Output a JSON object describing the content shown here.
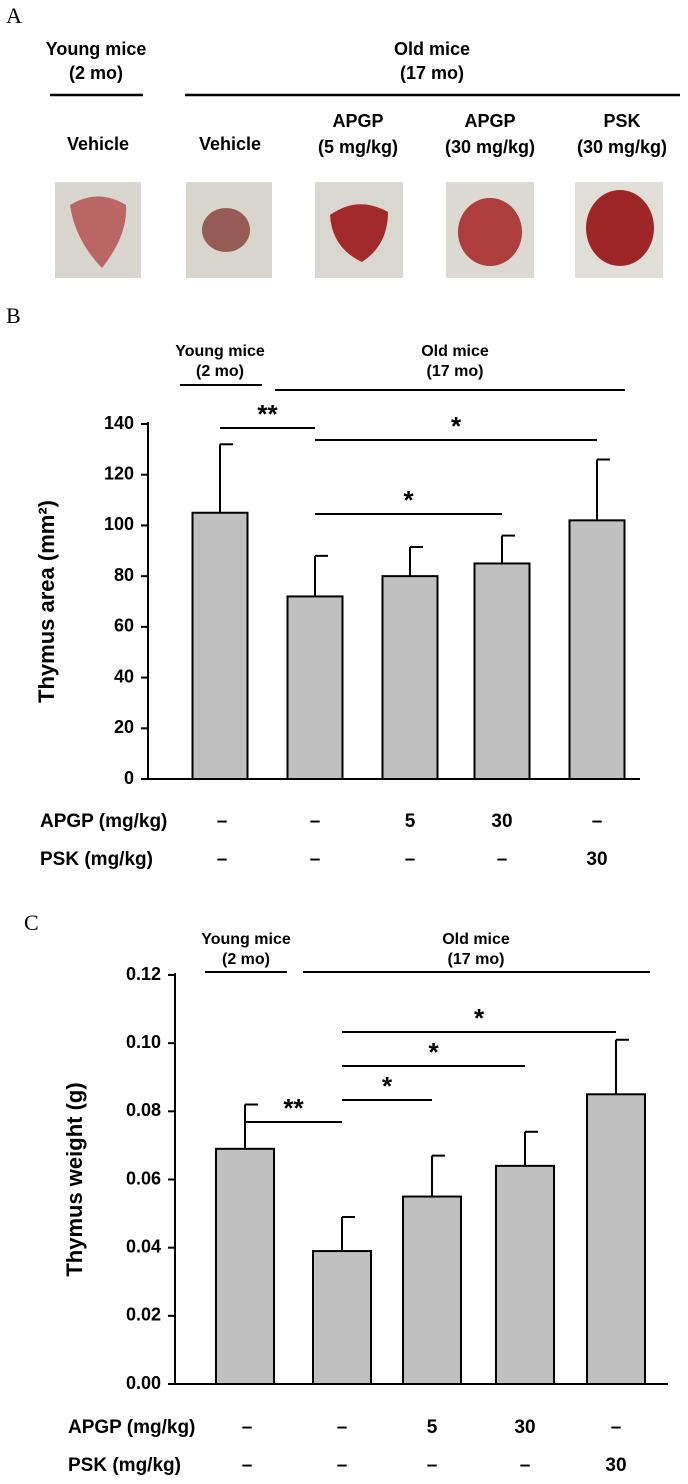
{
  "panel_a": {
    "label": "A",
    "groups": [
      {
        "name": "Young mice",
        "detail": "(2 mo)"
      },
      {
        "name": "Old mice",
        "detail": "(17 mo)"
      }
    ],
    "columns": [
      {
        "lines": [
          "Vehicle"
        ]
      },
      {
        "lines": [
          "Vehicle"
        ]
      },
      {
        "lines": [
          "APGP",
          "(5 mg/kg)"
        ]
      },
      {
        "lines": [
          "APGP",
          "(30 mg/kg)"
        ]
      },
      {
        "lines": [
          "PSK",
          "(30 mg/kg)"
        ]
      }
    ]
  },
  "chart_data": [
    {
      "type": "bar",
      "panel_label": "B",
      "groups": [
        {
          "name": "Young mice",
          "detail": "(2 mo)"
        },
        {
          "name": "Old mice",
          "detail": "(17 mo)"
        }
      ],
      "y_label": "Thymus area (mm²)",
      "values": [
        105,
        72,
        80,
        85,
        102
      ],
      "errors": [
        27,
        16,
        11.5,
        11,
        24
      ],
      "color": "#c0c0c0",
      "ylim": [
        0,
        140
      ],
      "yticks": [
        0,
        20,
        40,
        60,
        80,
        100,
        120,
        140
      ],
      "significance": [
        {
          "label": "**",
          "from": 0,
          "to": 1
        },
        {
          "label": "*",
          "from": 1,
          "to": 3
        },
        {
          "label": "*",
          "from": 1,
          "to": 4
        }
      ],
      "treatments": [
        {
          "name": "APGP (mg/kg)",
          "values": [
            "–",
            "–",
            "5",
            "30",
            "–"
          ]
        },
        {
          "name": "PSK (mg/kg)",
          "values": [
            "–",
            "–",
            "–",
            "–",
            "30"
          ]
        }
      ]
    },
    {
      "type": "bar",
      "panel_label": "C",
      "groups": [
        {
          "name": "Young mice",
          "detail": "(2 mo)"
        },
        {
          "name": "Old mice",
          "detail": "(17 mo)"
        }
      ],
      "y_label": "Thymus weight (g)",
      "values": [
        0.069,
        0.039,
        0.055,
        0.064,
        0.085
      ],
      "errors": [
        0.013,
        0.01,
        0.012,
        0.01,
        0.016
      ],
      "color": "#c0c0c0",
      "ylim": [
        0,
        0.12
      ],
      "yticks": [
        {
          "value": 0,
          "label": "0.00"
        },
        {
          "value": 0.02,
          "label": "0.02"
        },
        {
          "value": 0.04,
          "label": "0.04"
        },
        {
          "value": 0.06,
          "label": "0.06"
        },
        {
          "value": 0.08,
          "label": "0.08"
        },
        {
          "value": 0.1,
          "label": "0.10"
        },
        {
          "value": 0.12,
          "label": "0.12"
        }
      ],
      "significance": [
        {
          "label": "**",
          "from": 0,
          "to": 1
        },
        {
          "label": "*",
          "from": 1,
          "to": 2
        },
        {
          "label": "*",
          "from": 1,
          "to": 3
        },
        {
          "label": "*",
          "from": 1,
          "to": 4
        }
      ],
      "treatments": [
        {
          "name": "APGP (mg/kg)",
          "values": [
            "–",
            "–",
            "5",
            "30",
            "–"
          ]
        },
        {
          "name": "PSK (mg/kg)",
          "values": [
            "–",
            "–",
            "–",
            "–",
            "30"
          ]
        }
      ]
    }
  ]
}
